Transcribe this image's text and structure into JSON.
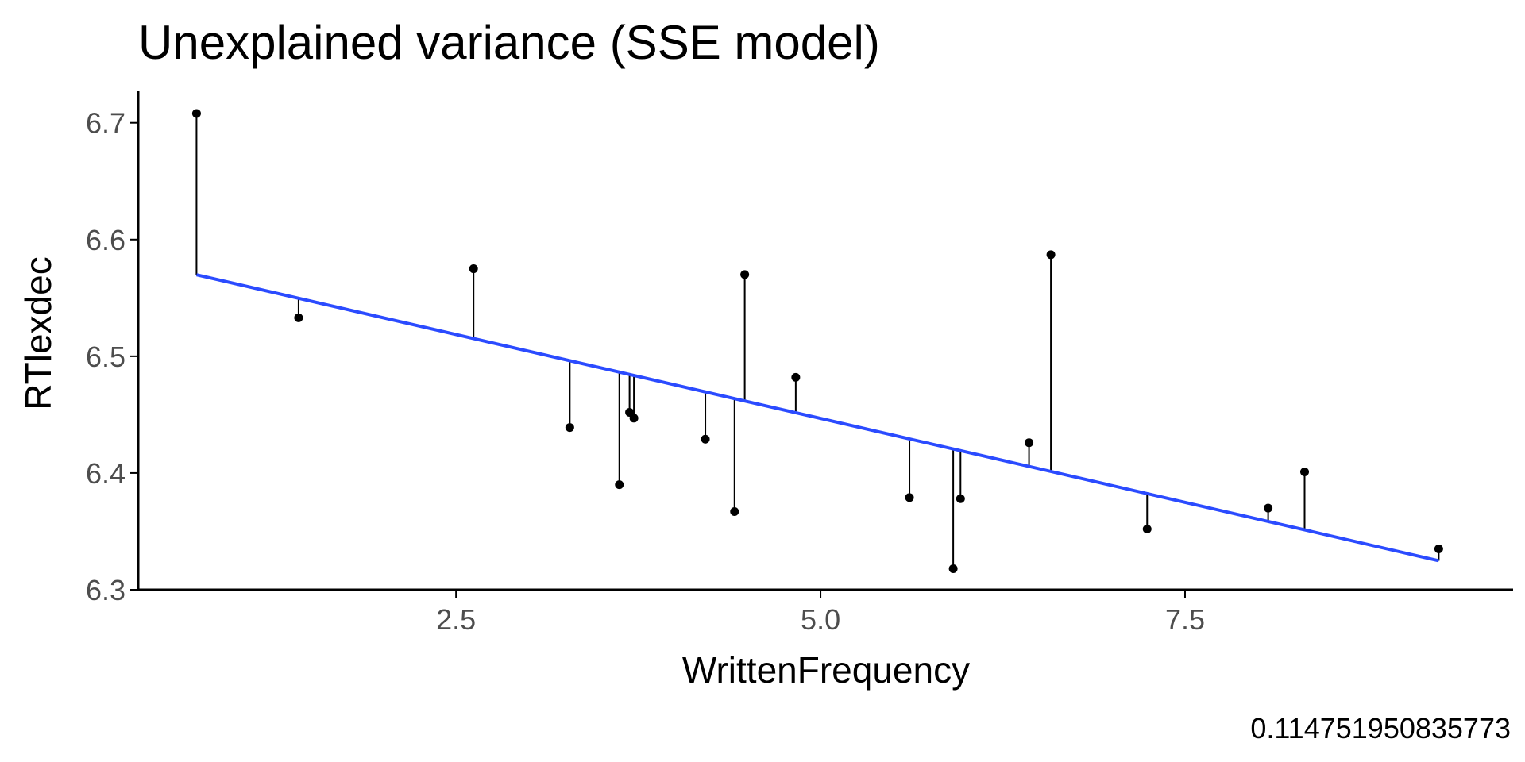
{
  "chart_data": {
    "type": "scatter",
    "title": "Unexplained variance (SSE model)",
    "xlabel": "WrittenFrequency",
    "ylabel": "RTlexdec",
    "caption": "0.114751950835773",
    "xlim": [
      0.32,
      9.75
    ],
    "ylim": [
      6.3,
      6.727
    ],
    "x_ticks": [
      2.5,
      5.0,
      7.5
    ],
    "x_tick_labels": [
      "2.5",
      "5.0",
      "7.5"
    ],
    "y_ticks": [
      6.3,
      6.4,
      6.5,
      6.6,
      6.7
    ],
    "y_tick_labels": [
      "6.3",
      "6.4",
      "6.5",
      "6.6",
      "6.7"
    ],
    "grid": false,
    "fit_line": {
      "color": "#2b4bff",
      "intercept": 6.5905,
      "slope": -0.02875,
      "x_range": [
        0.72,
        9.24
      ]
    },
    "points": [
      {
        "x": 0.72,
        "y": 6.708
      },
      {
        "x": 1.42,
        "y": 6.533
      },
      {
        "x": 2.62,
        "y": 6.575
      },
      {
        "x": 3.28,
        "y": 6.439
      },
      {
        "x": 3.62,
        "y": 6.39
      },
      {
        "x": 3.69,
        "y": 6.452
      },
      {
        "x": 3.72,
        "y": 6.447
      },
      {
        "x": 4.21,
        "y": 6.429
      },
      {
        "x": 4.41,
        "y": 6.367
      },
      {
        "x": 4.48,
        "y": 6.57
      },
      {
        "x": 4.83,
        "y": 6.482
      },
      {
        "x": 5.61,
        "y": 6.379
      },
      {
        "x": 5.91,
        "y": 6.318
      },
      {
        "x": 5.96,
        "y": 6.378
      },
      {
        "x": 6.43,
        "y": 6.426
      },
      {
        "x": 6.58,
        "y": 6.587
      },
      {
        "x": 7.24,
        "y": 6.352
      },
      {
        "x": 8.07,
        "y": 6.37
      },
      {
        "x": 8.32,
        "y": 6.401
      },
      {
        "x": 9.24,
        "y": 6.335
      }
    ]
  }
}
